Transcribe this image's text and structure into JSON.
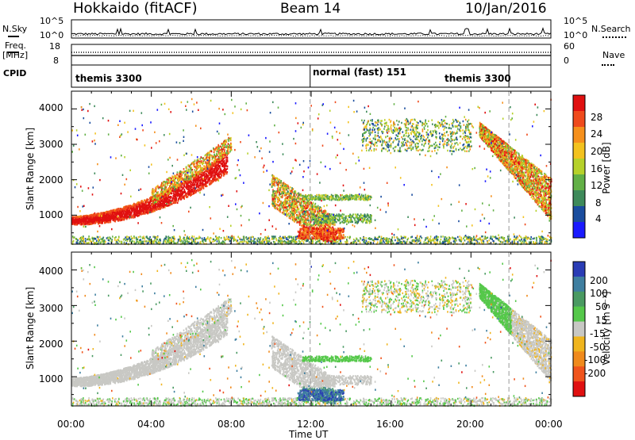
{
  "header": {
    "title": "Hokkaido (fitACF)",
    "beam": "Beam 14",
    "date": "10/Jan/2016"
  },
  "noise_panel": {
    "left_label": "N.Sky",
    "right_label": "N.Search",
    "left_ticks": [
      "10^5",
      "10^0"
    ],
    "right_ticks": [
      "10^5",
      "10^0"
    ]
  },
  "freq_panel": {
    "left_label": "Freq.",
    "left_unit": "[MHz]",
    "right_label": "Nave",
    "left_ticks": [
      "18",
      "8"
    ],
    "right_ticks": [
      "60",
      "0"
    ]
  },
  "cpid_panel": {
    "label": "CPID",
    "modes": [
      "themis 3300",
      "normal (fast) 151",
      "themis 3300"
    ]
  },
  "chart_data": [
    {
      "type": "heatmap",
      "title": "",
      "ylabel": "Slant Range [km]",
      "xlabel": "",
      "yticks": [
        "1000",
        "2000",
        "3000",
        "4000"
      ],
      "ylim": [
        180,
        4500
      ],
      "colorbar": {
        "label": "Power [dB]",
        "ticks": [
          "4",
          "8",
          "12",
          "16",
          "20",
          "24",
          "28"
        ],
        "range": [
          0,
          30
        ],
        "colors": [
          "#1a1aff",
          "#1a4d9e",
          "#3e8a5a",
          "#62b046",
          "#b6d12a",
          "#f3c21e",
          "#f6901c",
          "#ef4a1c",
          "#e01010"
        ]
      }
    },
    {
      "type": "heatmap",
      "title": "",
      "ylabel": "Slant Range [km]",
      "xlabel": "Time UT",
      "yticks": [
        "1000",
        "2000",
        "3000",
        "4000"
      ],
      "xticks": [
        "00:00",
        "04:00",
        "08:00",
        "12:00",
        "16:00",
        "20:00",
        "00:00"
      ],
      "ylim": [
        180,
        4500
      ],
      "colorbar": {
        "label": "Velocity [m s⁻¹]",
        "ticks": [
          "200",
          "100",
          "50",
          "15",
          "-15",
          "-50",
          "-100",
          "-200"
        ],
        "range": [
          -250,
          250
        ],
        "colors": [
          "#2a3cb5",
          "#3f7fa0",
          "#4a9a62",
          "#55c84a",
          "#c8c8c4",
          "#f0b51e",
          "#f08a1c",
          "#f0541c",
          "#e01010"
        ]
      }
    }
  ]
}
